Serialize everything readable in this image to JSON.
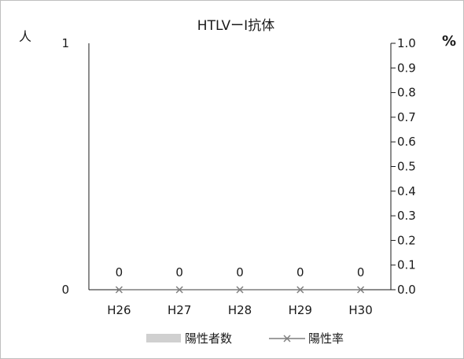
{
  "chart_data": {
    "type": "bar+line",
    "title": "HTLVーI抗体",
    "left_axis_label": "人",
    "right_axis_label": "%",
    "categories": [
      "H26",
      "H27",
      "H28",
      "H29",
      "H30"
    ],
    "left_ylim": [
      0,
      1
    ],
    "left_ticks": [
      "0",
      "1"
    ],
    "right_ylim": [
      0.0,
      1.0
    ],
    "right_ticks": [
      "0.0",
      "0.1",
      "0.2",
      "0.3",
      "0.4",
      "0.5",
      "0.6",
      "0.7",
      "0.8",
      "0.9",
      "1.0"
    ],
    "series": [
      {
        "name": "陽性者数",
        "kind": "bar",
        "axis": "left",
        "values": [
          0,
          0,
          0,
          0,
          0
        ],
        "data_labels": [
          "0",
          "0",
          "0",
          "0",
          "0"
        ],
        "color": "#d0d0d0"
      },
      {
        "name": "陽性率",
        "kind": "line",
        "axis": "right",
        "values": [
          0.0,
          0.0,
          0.0,
          0.0,
          0.0
        ],
        "color": "#7f7f7f",
        "marker": "x"
      }
    ],
    "legend_position": "bottom",
    "grid": false
  }
}
